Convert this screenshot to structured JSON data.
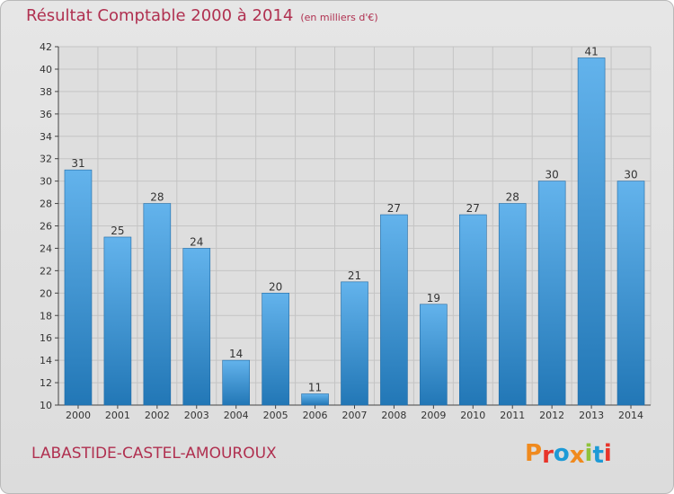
{
  "header": {
    "title": "Résultat Comptable 2000 à 2014",
    "unit": "(en milliers d'€)"
  },
  "footer": {
    "commune": "LABASTIDE-CASTEL-AMOUROUX",
    "logo_text": "Proxiti",
    "logo_colors": [
      "#f08a1e",
      "#e8342a",
      "#1d9ad6",
      "#f08a1e",
      "#8fc23b",
      "#1d9ad6",
      "#e8342a"
    ]
  },
  "colors": {
    "title": "#b03050",
    "bar_top": "#63b3ec",
    "bar_bottom": "#2277b6",
    "background": "#e0e0e0"
  },
  "chart_data": {
    "type": "bar",
    "title": "Résultat Comptable 2000 à 2014",
    "categories": [
      "2000",
      "2001",
      "2002",
      "2003",
      "2004",
      "2005",
      "2006",
      "2007",
      "2008",
      "2009",
      "2010",
      "2011",
      "2012",
      "2013",
      "2014"
    ],
    "values": [
      31,
      25,
      28,
      24,
      14,
      20,
      11,
      21,
      27,
      19,
      27,
      28,
      30,
      41,
      30
    ],
    "data_labels": [
      "31",
      "25",
      "28",
      "24",
      "14",
      "20",
      "11",
      "21",
      "27",
      "19",
      "27",
      "28",
      "30",
      "41",
      "30"
    ],
    "ylim": [
      10,
      42
    ],
    "yticks": [
      "10",
      "12",
      "14",
      "16",
      "18",
      "20",
      "22",
      "24",
      "26",
      "28",
      "30",
      "32",
      "34",
      "36",
      "38",
      "40",
      "42"
    ],
    "xlabel": "",
    "ylabel": "",
    "grid": true,
    "legend": "none"
  }
}
